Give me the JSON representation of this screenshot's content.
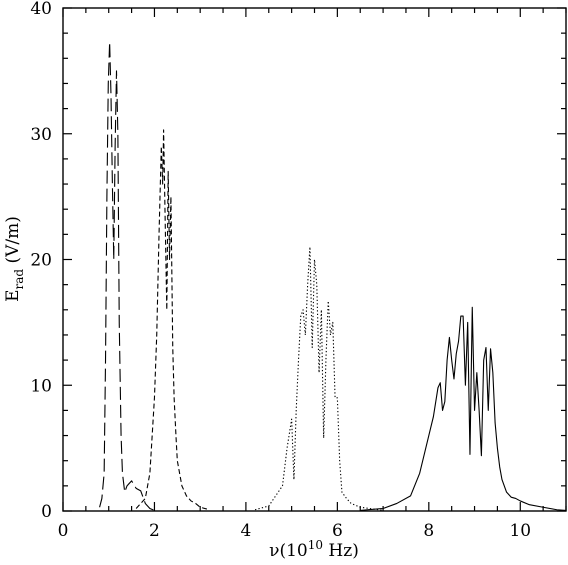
{
  "chart_data": {
    "type": "line",
    "xlabel": {
      "prefix": "ν(10",
      "exp": "10",
      "suffix": " Hz)"
    },
    "ylabel": {
      "main": "E",
      "sub": "rad",
      "suffix": " (V/m)"
    },
    "xlim": [
      0,
      11
    ],
    "ylim": [
      0,
      40
    ],
    "x_ticks": [
      0,
      2,
      4,
      6,
      8,
      10
    ],
    "y_ticks": [
      0,
      10,
      20,
      30,
      40
    ],
    "grid": false,
    "series": [
      {
        "style": "long-dash",
        "x": [
          0.8,
          0.85,
          0.9,
          0.93,
          0.96,
          0.99,
          1.02,
          1.05,
          1.08,
          1.11,
          1.14,
          1.17,
          1.2,
          1.23,
          1.27,
          1.3,
          1.35,
          1.4,
          1.5,
          1.6,
          1.7,
          1.8,
          1.9,
          2.0
        ],
        "y": [
          0.3,
          1.0,
          3.0,
          12.0,
          25.0,
          34.0,
          37.3,
          33.0,
          26.0,
          20.0,
          29.0,
          35.0,
          30.0,
          15.0,
          6.0,
          3.0,
          1.5,
          2.0,
          2.4,
          1.8,
          1.6,
          0.6,
          0.2,
          0.05
        ]
      },
      {
        "style": "short-dash",
        "x": [
          1.6,
          1.8,
          1.9,
          1.95,
          2.0,
          2.05,
          2.1,
          2.15,
          2.18,
          2.2,
          2.23,
          2.27,
          2.3,
          2.33,
          2.36,
          2.4,
          2.43,
          2.47,
          2.5,
          2.55,
          2.6,
          2.7,
          2.8,
          2.9,
          3.0,
          3.2
        ],
        "y": [
          0.2,
          1.0,
          3.0,
          6.0,
          9.0,
          14.0,
          22.0,
          29.0,
          26.0,
          30.3,
          24.0,
          16.0,
          27.0,
          20.0,
          25.0,
          13.0,
          9.0,
          6.0,
          4.0,
          3.0,
          2.0,
          1.2,
          0.8,
          0.6,
          0.3,
          0.1
        ]
      },
      {
        "style": "dotted",
        "x": [
          4.2,
          4.5,
          4.8,
          4.9,
          5.0,
          5.05,
          5.1,
          5.15,
          5.2,
          5.25,
          5.3,
          5.35,
          5.4,
          5.45,
          5.5,
          5.55,
          5.6,
          5.65,
          5.7,
          5.75,
          5.8,
          5.85,
          5.9,
          5.95,
          6.0,
          6.05,
          6.1,
          6.2,
          6.3,
          6.5,
          6.7,
          7.0
        ],
        "y": [
          0.1,
          0.4,
          2.0,
          5.0,
          7.3,
          2.5,
          8.0,
          12.0,
          15.5,
          16.0,
          14.0,
          18.0,
          21.0,
          13.0,
          20.0,
          18.0,
          11.0,
          16.0,
          5.8,
          12.0,
          16.7,
          14.0,
          15.0,
          9.0,
          9.0,
          4.0,
          1.5,
          1.0,
          0.6,
          0.3,
          0.2,
          0.05
        ]
      },
      {
        "style": "solid",
        "x": [
          6.5,
          7.0,
          7.3,
          7.6,
          7.8,
          7.9,
          8.0,
          8.1,
          8.2,
          8.25,
          8.3,
          8.35,
          8.4,
          8.45,
          8.5,
          8.55,
          8.6,
          8.65,
          8.7,
          8.75,
          8.8,
          8.85,
          8.9,
          8.95,
          9.0,
          9.05,
          9.1,
          9.15,
          9.2,
          9.25,
          9.3,
          9.35,
          9.4,
          9.45,
          9.5,
          9.55,
          9.6,
          9.7,
          9.8,
          9.9,
          10.0,
          10.2,
          10.5,
          10.8,
          11.0
        ],
        "y": [
          0.05,
          0.2,
          0.6,
          1.2,
          3.0,
          4.5,
          6.0,
          7.5,
          9.8,
          10.2,
          8.0,
          8.7,
          12.0,
          13.8,
          12.0,
          10.5,
          12.5,
          13.5,
          15.5,
          15.5,
          10.0,
          15.0,
          4.5,
          16.2,
          8.0,
          11.0,
          8.0,
          4.4,
          12.0,
          13.0,
          8.0,
          12.9,
          11.0,
          7.0,
          5.0,
          3.5,
          2.5,
          1.5,
          1.1,
          1.0,
          0.8,
          0.5,
          0.3,
          0.1,
          0.05
        ]
      }
    ]
  }
}
